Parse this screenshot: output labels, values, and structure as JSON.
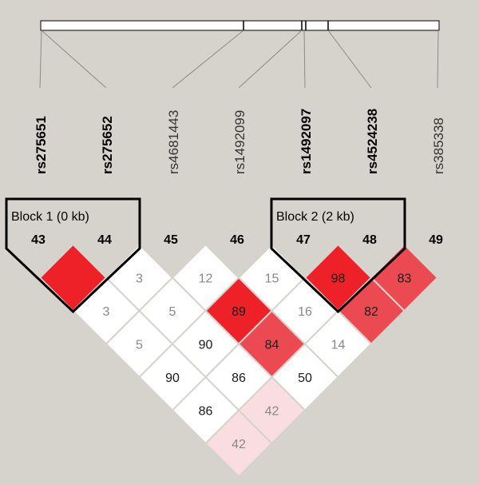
{
  "colors": {
    "background": "#d6d3cc",
    "strong_ld": "#ee2028",
    "medium_ld": "#ec4a52",
    "weak_ld": "#f9dde0",
    "no_ld": "#ffffff",
    "block_outline": "#000000"
  },
  "snps": [
    {
      "label": "rs275651",
      "index": "43",
      "bold": true
    },
    {
      "label": "rs275652",
      "index": "44",
      "bold": true
    },
    {
      "label": "rs4681443",
      "index": "45",
      "bold": false
    },
    {
      "label": "rs1492099",
      "index": "46",
      "bold": false
    },
    {
      "label": "rs1492097",
      "index": "47",
      "bold": true
    },
    {
      "label": "rs4524238",
      "index": "48",
      "bold": true
    },
    {
      "label": "rs385338",
      "index": "49",
      "bold": false
    }
  ],
  "blocks": [
    {
      "label": "Block 1 (0 kb)",
      "first": 0,
      "last": 1
    },
    {
      "label": "Block 2 (2 kb)",
      "first": 4,
      "last": 5
    }
  ],
  "ld_cells": [
    {
      "i": 0,
      "j": 1,
      "value": "",
      "shade": "strong"
    },
    {
      "i": 1,
      "j": 2,
      "value": "3",
      "shade": "none"
    },
    {
      "i": 2,
      "j": 3,
      "value": "12",
      "shade": "none"
    },
    {
      "i": 3,
      "j": 4,
      "value": "15",
      "shade": "none"
    },
    {
      "i": 4,
      "j": 5,
      "value": "98",
      "shade": "strong"
    },
    {
      "i": 5,
      "j": 6,
      "value": "83",
      "shade": "medium"
    },
    {
      "i": 0,
      "j": 2,
      "value": "3",
      "shade": "none"
    },
    {
      "i": 1,
      "j": 3,
      "value": "5",
      "shade": "none"
    },
    {
      "i": 2,
      "j": 4,
      "value": "89",
      "shade": "strong"
    },
    {
      "i": 3,
      "j": 5,
      "value": "16",
      "shade": "none"
    },
    {
      "i": 4,
      "j": 6,
      "value": "82",
      "shade": "medium"
    },
    {
      "i": 0,
      "j": 3,
      "value": "5",
      "shade": "none"
    },
    {
      "i": 1,
      "j": 4,
      "value": "90",
      "shade": "none"
    },
    {
      "i": 2,
      "j": 5,
      "value": "84",
      "shade": "medium"
    },
    {
      "i": 3,
      "j": 6,
      "value": "14",
      "shade": "none"
    },
    {
      "i": 0,
      "j": 4,
      "value": "90",
      "shade": "none"
    },
    {
      "i": 1,
      "j": 5,
      "value": "86",
      "shade": "none"
    },
    {
      "i": 2,
      "j": 6,
      "value": "50",
      "shade": "none"
    },
    {
      "i": 0,
      "j": 5,
      "value": "86",
      "shade": "none"
    },
    {
      "i": 1,
      "j": 6,
      "value": "42",
      "shade": "weak"
    },
    {
      "i": 0,
      "j": 6,
      "value": "42",
      "shade": "weak"
    }
  ]
}
